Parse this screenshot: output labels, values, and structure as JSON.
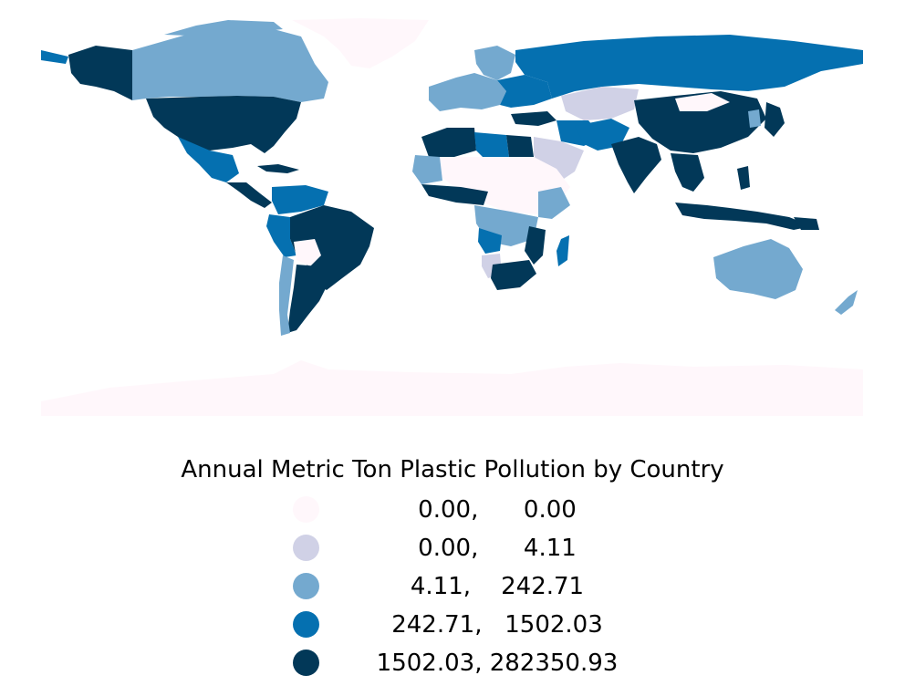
{
  "legend": {
    "title": "Annual Metric Ton Plastic Pollution by Country",
    "items": [
      {
        "label": "0.00,      0.00",
        "color": "#fff7fb"
      },
      {
        "label": "0.00,      4.11",
        "color": "#d0d1e6"
      },
      {
        "label": "4.11,    242.71",
        "color": "#74a9cf"
      },
      {
        "label": "242.71,   1502.03",
        "color": "#0570b0"
      },
      {
        "label": "1502.03, 282350.93",
        "color": "#023858"
      }
    ]
  },
  "colors": {
    "class_0": "#fff7fb",
    "class_1": "#d0d1e6",
    "class_2": "#74a9cf",
    "class_3": "#0570b0",
    "class_4": "#023858",
    "background": "#ffffff"
  }
}
